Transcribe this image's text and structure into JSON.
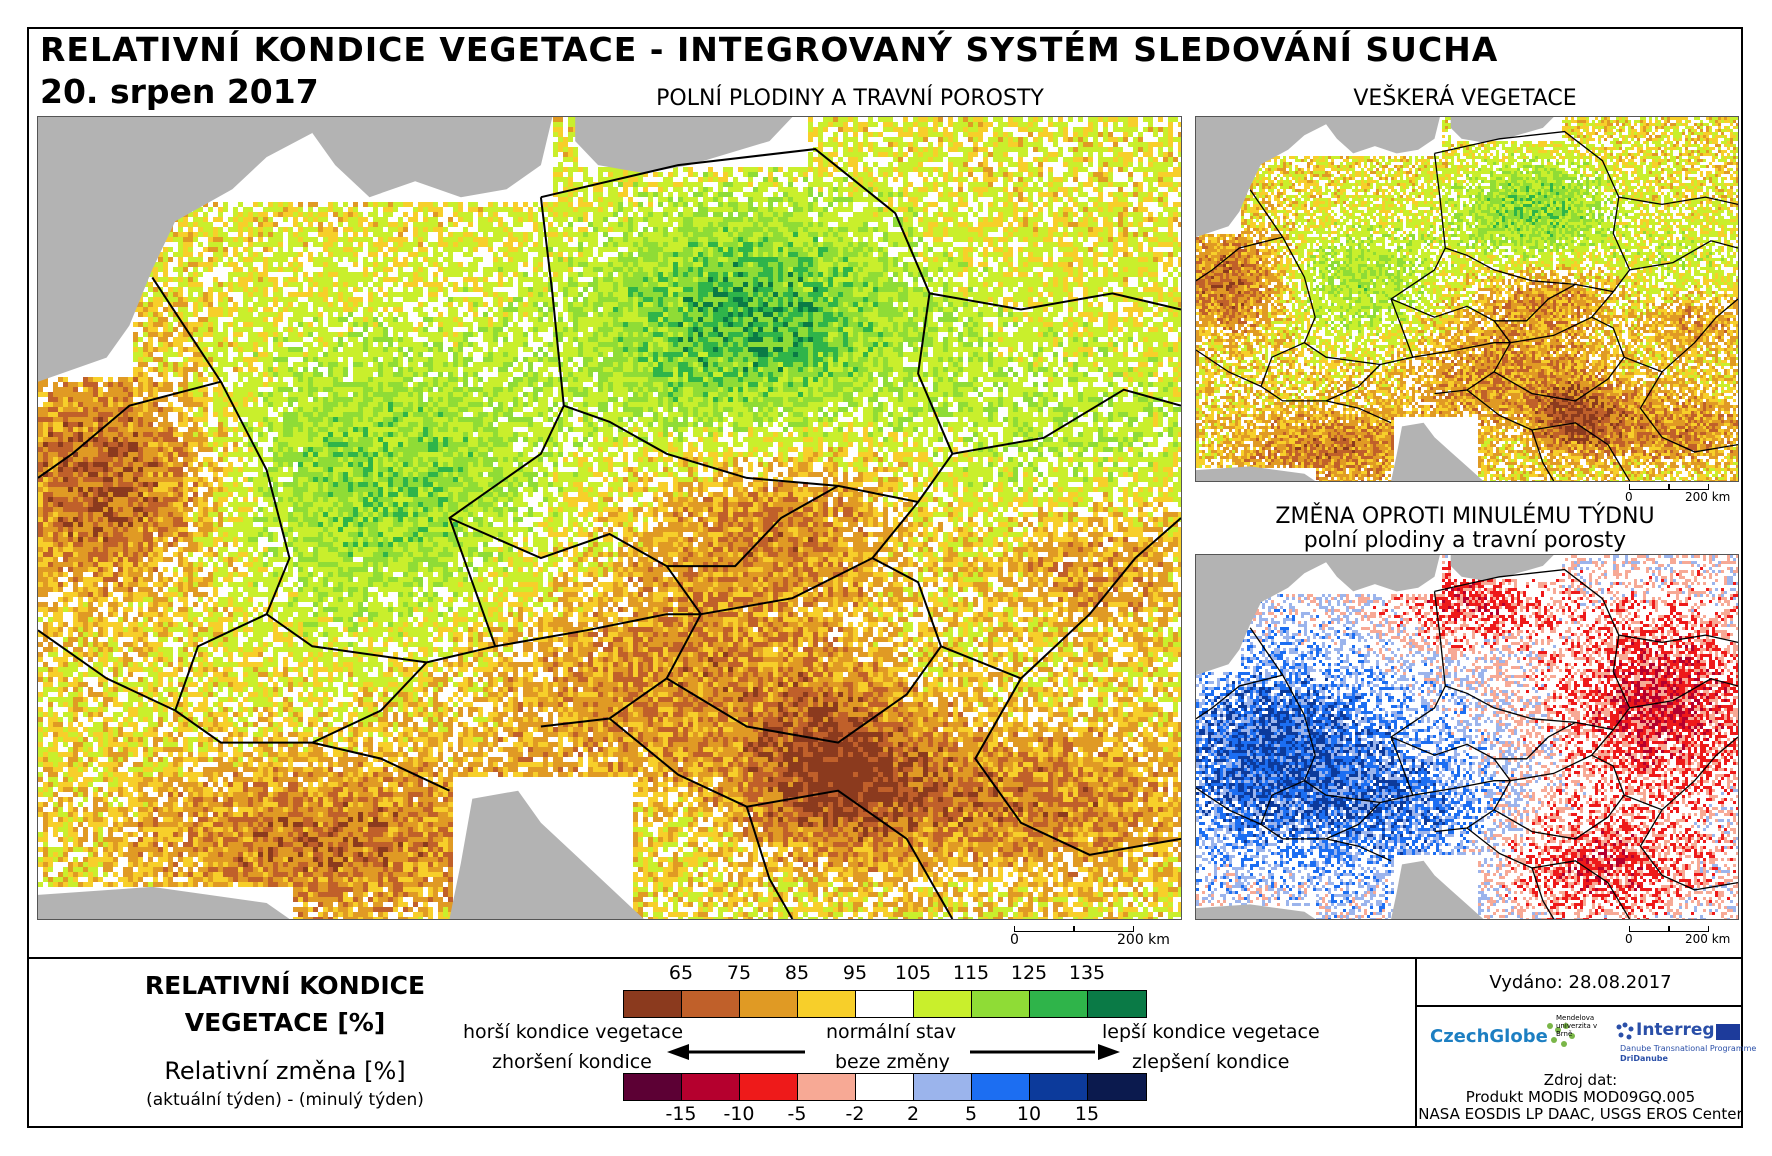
{
  "header": {
    "title": "RELATIVNÍ KONDICE VEGETACE - INTEGROVANÝ SYSTÉM SLEDOVÁNÍ SUCHA",
    "date": "20. srpen 2017"
  },
  "maps": {
    "main": {
      "label": "POLNÍ PLODINY A TRAVNÍ POROSTY",
      "scale_start": "0",
      "scale_end": "200 km"
    },
    "all_vegetation": {
      "label": "VEŠKERÁ VEGETACE",
      "scale_start": "0",
      "scale_end": "200 km"
    },
    "change": {
      "label_line1": "ZMĚNA OPROTI MINULÉMU TÝDNU",
      "label_line2": "polní plodiny a travní porosty",
      "scale_start": "0",
      "scale_end": "200 km"
    }
  },
  "legend": {
    "title_line1": "RELATIVNÍ KONDICE",
    "title_line2": "VEGETACE [%]",
    "change_title": "Relativní změna [%]",
    "change_note": "(aktuální týden) - (minulý týden)",
    "condition_ticks": [
      "65",
      "75",
      "85",
      "95",
      "105",
      "115",
      "125",
      "135"
    ],
    "condition_colors": [
      "#8b3a1e",
      "#c0602a",
      "#e09a24",
      "#f7cf2a",
      "#ffffff",
      "#c9ef2c",
      "#8fdc36",
      "#2fb44a",
      "#0a7a46"
    ],
    "change_ticks": [
      "-15",
      "-10",
      "-5",
      "-2",
      "2",
      "5",
      "10",
      "15"
    ],
    "change_colors": [
      "#5c0034",
      "#b5002e",
      "#ee1a1a",
      "#f7a995",
      "#ffffff",
      "#9bb4ec",
      "#1c6ef2",
      "#0c3a9b",
      "#0b1a4e"
    ],
    "worse_condition": "horší kondice vegetace",
    "normal_state": "normální stav",
    "better_condition": "lepší kondice vegetace",
    "worsening": "zhoršení kondice",
    "no_change": "beze změny",
    "improvement": "zlepšení kondice"
  },
  "info": {
    "issued": "Vydáno: 28.08.2017",
    "logos": [
      "CzechGlobe",
      "Mendelova univerzita v Brně",
      "Interreg",
      "Danube Transnational Programme",
      "DriDanube"
    ],
    "source_title": "Zdroj dat:",
    "source_line1": "Produkt MODIS MOD09GQ.005",
    "source_line2": "NASA EOSDIS LP DAAC, USGS EROS Center"
  },
  "colors": {
    "sea": "#b3b3b3",
    "border_line": "#000000"
  }
}
